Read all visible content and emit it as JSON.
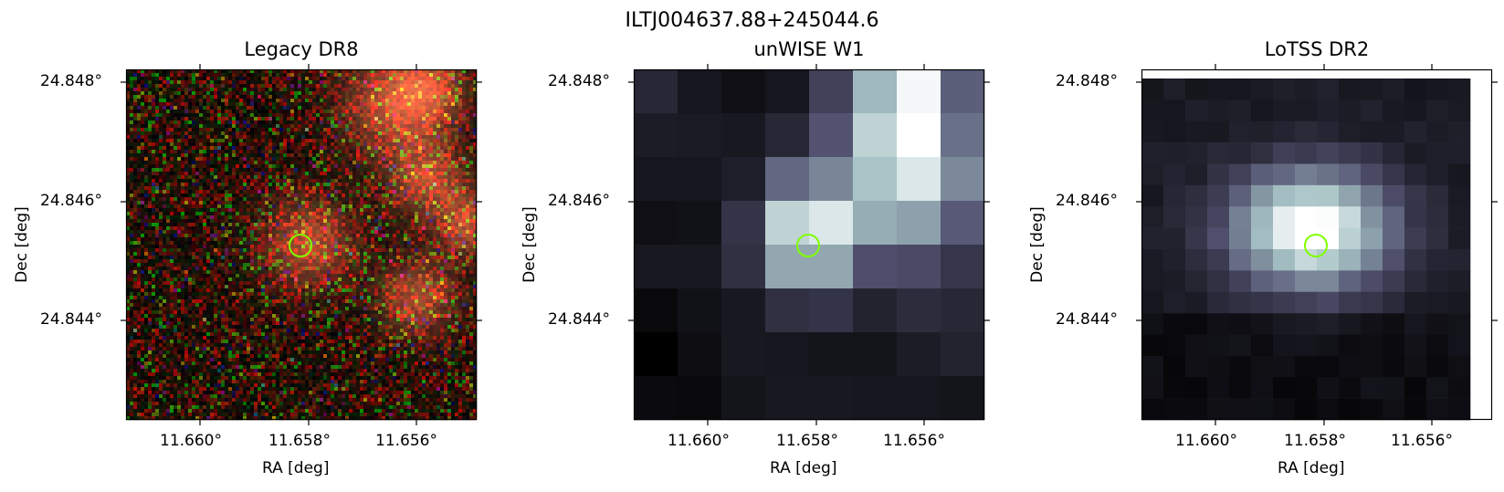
{
  "figure": {
    "title": "ILTJ004637.88+245044.6"
  },
  "panels": [
    {
      "title": "Legacy DR8",
      "image_kind": "rgb-noise",
      "xlabel": "RA [deg]",
      "ylabel": "Dec [deg]",
      "x_ticks": [
        "11.660°",
        "11.658°",
        "11.656°"
      ],
      "y_ticks": [
        "24.848°",
        "24.846°",
        "24.844°"
      ]
    },
    {
      "title": "unWISE W1",
      "image_kind": "coarse-bone",
      "xlabel": "RA [deg]",
      "ylabel": "Dec [deg]",
      "x_ticks": [
        "11.660°",
        "11.658°",
        "11.656°"
      ],
      "y_ticks": [
        "24.848°",
        "24.846°",
        "24.844°"
      ]
    },
    {
      "title": "LoTSS DR2",
      "image_kind": "fine-bone",
      "xlabel": "RA [deg]",
      "ylabel": "Dec [deg]",
      "x_ticks": [
        "11.660°",
        "11.658°",
        "11.656°"
      ],
      "y_ticks": [
        "24.848°",
        "24.846°",
        "24.844°"
      ]
    }
  ],
  "colors": {
    "marker": "#7fff00",
    "frame": "#000000"
  }
}
